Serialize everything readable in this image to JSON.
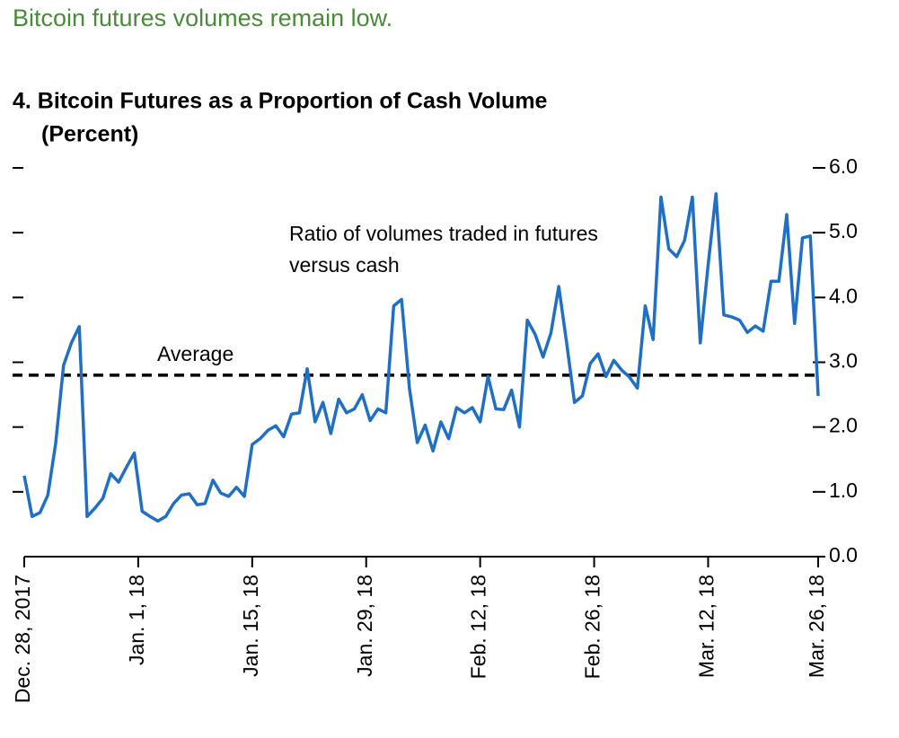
{
  "header": {
    "title": "Bitcoin futures volumes remain low."
  },
  "chart_data": {
    "type": "line",
    "title": "4. Bitcoin Futures as a Proportion of Cash Volume",
    "subtitle": "(Percent)",
    "annotation": [
      "Ratio of volumes traded in futures",
      "versus cash"
    ],
    "reference_line": {
      "label": "Average",
      "value": 2.8
    },
    "color": "#1f6fc5",
    "xlim": [
      0,
      101
    ],
    "xticks": [
      {
        "value": 0,
        "label": "Dec. 28, 2017"
      },
      {
        "value": 14.5,
        "label": "Jan. 1, 18"
      },
      {
        "value": 29,
        "label": "Jan. 15, 18"
      },
      {
        "value": 43.5,
        "label": "Jan. 29, 18"
      },
      {
        "value": 58,
        "label": "Feb. 12, 18"
      },
      {
        "value": 72.5,
        "label": "Feb. 26, 18"
      },
      {
        "value": 87,
        "label": "Mar. 12, 18"
      },
      {
        "value": 101,
        "label": "Mar. 26, 18"
      }
    ],
    "ylim": [
      0,
      6
    ],
    "yticks": [
      {
        "value": 0,
        "label": "0.0"
      },
      {
        "value": 1,
        "label": "1.0"
      },
      {
        "value": 2,
        "label": "2.0"
      },
      {
        "value": 3,
        "label": "3.0"
      },
      {
        "value": 4,
        "label": "4.0"
      },
      {
        "value": 5,
        "label": "5.0"
      },
      {
        "value": 6,
        "label": "6.0"
      }
    ],
    "values": [
      1.25,
      0.62,
      0.68,
      0.95,
      1.75,
      2.95,
      3.3,
      3.55,
      0.62,
      0.75,
      0.9,
      1.28,
      1.15,
      1.38,
      1.6,
      0.7,
      0.62,
      0.55,
      0.62,
      0.82,
      0.95,
      0.97,
      0.8,
      0.82,
      1.18,
      0.98,
      0.93,
      1.07,
      0.93,
      1.73,
      1.82,
      1.95,
      2.02,
      1.85,
      2.2,
      2.22,
      2.9,
      2.08,
      2.38,
      1.9,
      2.43,
      2.22,
      2.28,
      2.5,
      2.1,
      2.28,
      2.22,
      3.87,
      3.97,
      2.6,
      1.76,
      2.03,
      1.63,
      2.08,
      1.82,
      2.3,
      2.22,
      2.3,
      2.08,
      2.78,
      2.28,
      2.27,
      2.57,
      2.0,
      3.65,
      3.43,
      3.08,
      3.45,
      4.17,
      3.3,
      2.38,
      2.48,
      2.98,
      3.13,
      2.78,
      3.03,
      2.88,
      2.77,
      2.6,
      3.87,
      3.35,
      5.55,
      4.75,
      4.63,
      4.88,
      5.55,
      3.3,
      4.5,
      5.6,
      3.73,
      3.7,
      3.65,
      3.46,
      3.56,
      3.48,
      4.25,
      4.25,
      5.28,
      3.6,
      4.92,
      4.95,
      2.48
    ]
  }
}
